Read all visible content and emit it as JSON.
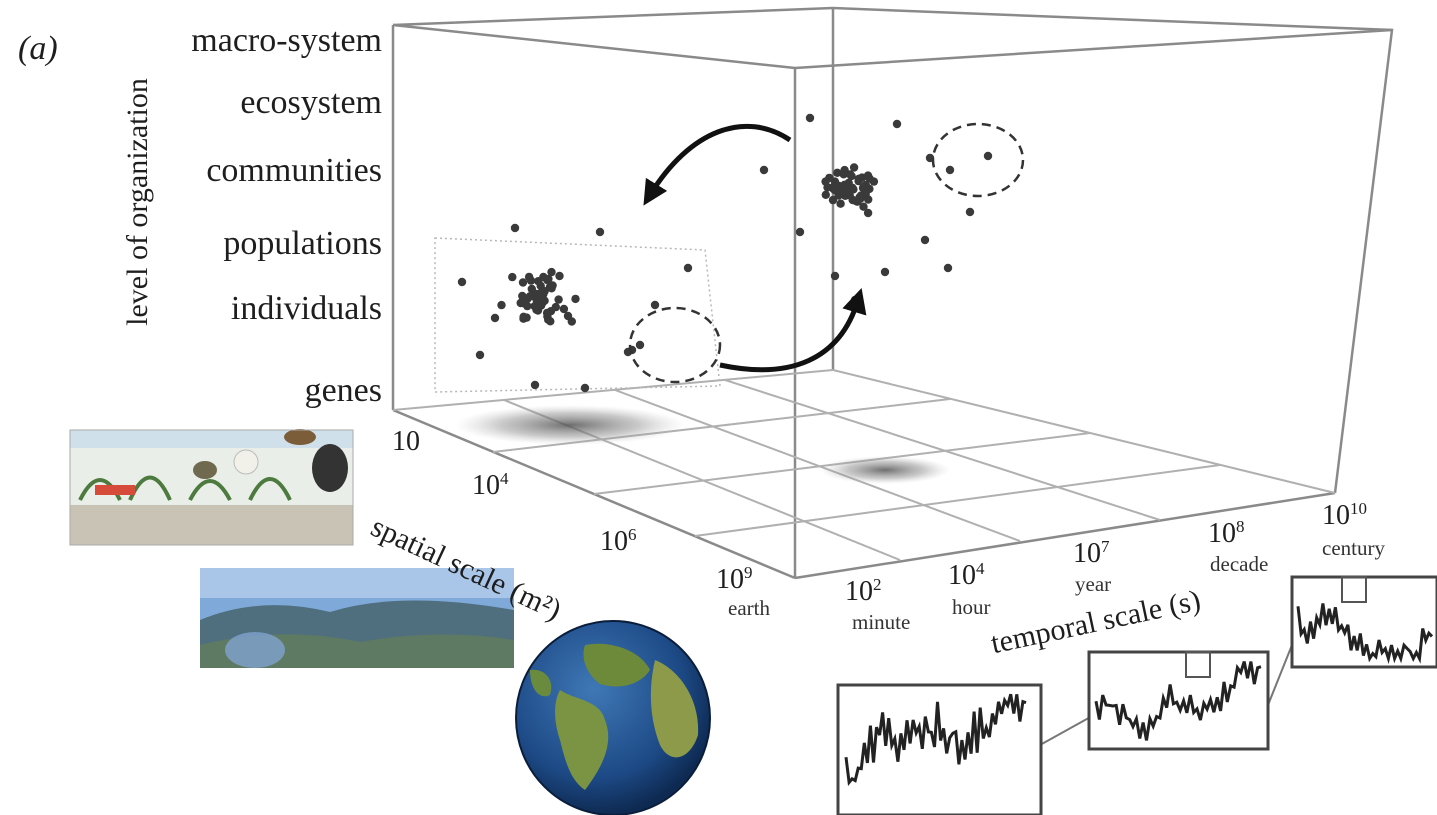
{
  "panel_label": "(a)",
  "y_axis": {
    "title": "level of organization",
    "levels": [
      "macro-system",
      "ecosystem",
      "communities",
      "populations",
      "individuals",
      "genes"
    ]
  },
  "spatial_axis": {
    "title": "spatial scale (m²)",
    "ticks": [
      {
        "base": "10",
        "exp": "",
        "sub": ""
      },
      {
        "base": "10",
        "exp": "4",
        "sub": ""
      },
      {
        "base": "10",
        "exp": "6",
        "sub": ""
      },
      {
        "base": "10",
        "exp": "9",
        "sub": "earth"
      }
    ]
  },
  "temporal_axis": {
    "title": "temporal scale (s)",
    "ticks": [
      {
        "base": "10",
        "exp": "2",
        "sub": "minute"
      },
      {
        "base": "10",
        "exp": "4",
        "sub": "hour"
      },
      {
        "base": "10",
        "exp": "7",
        "sub": "year"
      },
      {
        "base": "10",
        "exp": "8",
        "sub": "decade"
      },
      {
        "base": "10",
        "exp": "10",
        "sub": "century"
      }
    ]
  },
  "icons": {
    "ecosystem_scene": "wetland-diorama-image",
    "landscape": "landscape-photo-image",
    "globe": "earth-globe-image"
  },
  "colors": {
    "points": "#3a3a3a",
    "frame": "#8a8a8a",
    "shadow": "#6a6a6a",
    "ocean": "#1f4f8a",
    "land": "#6c8a3a"
  }
}
